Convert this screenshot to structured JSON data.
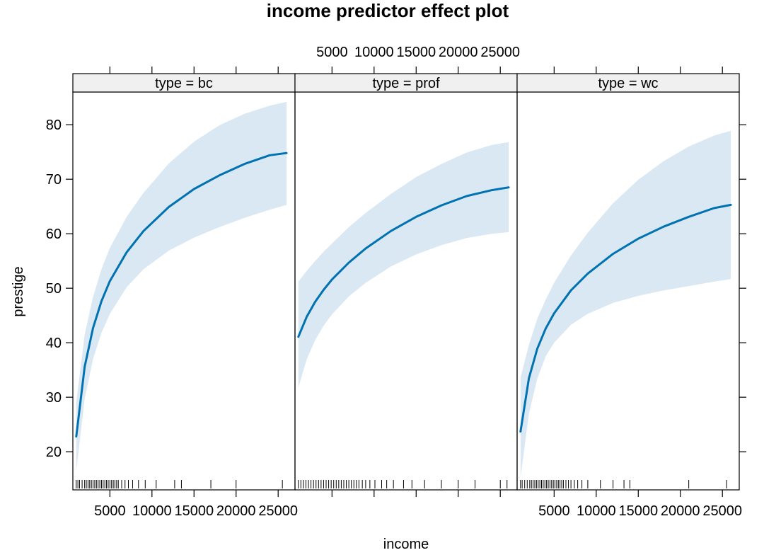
{
  "chart_data": {
    "type": "line",
    "title": "income predictor effect plot",
    "xlabel": "income",
    "ylabel": "prestige",
    "xlim": [
      600,
      27000
    ],
    "ylim": [
      13,
      86
    ],
    "x_ticks": [
      5000,
      10000,
      15000,
      20000,
      25000
    ],
    "x_tick_labels": [
      "5000",
      "10000",
      "15000",
      "20000",
      "25000"
    ],
    "y_ticks": [
      20,
      30,
      40,
      50,
      60,
      70,
      80
    ],
    "y_tick_labels": [
      "20",
      "30",
      "40",
      "50",
      "60",
      "70",
      "80"
    ],
    "line_color": "#0072B2",
    "band_color": "#D9E8F2",
    "strip_color": "#F0F0F0",
    "panels": [
      {
        "strip": "type = bc",
        "x": [
          1000,
          2000,
          3000,
          4000,
          5000,
          7000,
          9000,
          12000,
          15000,
          18000,
          21000,
          24000,
          26000
        ],
        "fit": [
          22.8,
          35.6,
          42.7,
          47.6,
          51.3,
          56.6,
          60.5,
          64.9,
          68.2,
          70.7,
          72.8,
          74.4,
          74.8
        ],
        "lower": [
          16.5,
          29.7,
          37.0,
          41.8,
          45.3,
          50.2,
          53.5,
          56.9,
          59.3,
          61.2,
          62.9,
          64.4,
          65.3
        ],
        "upper": [
          29.1,
          41.5,
          48.4,
          53.5,
          57.4,
          63.1,
          67.5,
          72.9,
          76.9,
          79.9,
          82.0,
          83.5,
          84.2
        ],
        "rug": [
          1000,
          1200,
          1400,
          1700,
          2000,
          2200,
          2400,
          2600,
          2800,
          3000,
          3200,
          3400,
          3600,
          3800,
          4000,
          4200,
          4400,
          4600,
          4800,
          5000,
          5200,
          5400,
          5600,
          5800,
          6000,
          6400,
          6800,
          7200,
          7700,
          8400,
          9200,
          10500,
          12700,
          13500,
          17000,
          20000,
          25500
        ]
      },
      {
        "strip": "type = prof",
        "x": [
          1000,
          2000,
          3000,
          4000,
          5000,
          7000,
          9000,
          12000,
          15000,
          18000,
          21000,
          24000,
          26000
        ],
        "fit": [
          41.1,
          44.8,
          47.5,
          49.7,
          51.6,
          54.7,
          57.3,
          60.5,
          63.1,
          65.2,
          66.9,
          68.0,
          68.5
        ],
        "lower": [
          31.8,
          37.0,
          40.5,
          43.1,
          45.2,
          48.5,
          51.0,
          54.0,
          56.2,
          57.9,
          59.2,
          60.0,
          60.3
        ],
        "upper": [
          51.2,
          53.2,
          55.0,
          56.7,
          58.2,
          61.2,
          63.8,
          67.3,
          70.4,
          72.8,
          74.9,
          76.3,
          76.8
        ],
        "rug": [
          1000,
          1300,
          1600,
          1900,
          2200,
          2500,
          2800,
          3100,
          3400,
          3700,
          4000,
          4300,
          4600,
          4900,
          5200,
          5500,
          5800,
          6100,
          6400,
          6700,
          7000,
          7300,
          7600,
          7900,
          8200,
          8600,
          9000,
          9500,
          10100,
          10900,
          11500,
          12300,
          13500,
          14500,
          16000,
          18000,
          20000,
          22000,
          25000,
          25800
        ]
      },
      {
        "strip": "type = wc",
        "x": [
          1000,
          2000,
          3000,
          4000,
          5000,
          7000,
          9000,
          12000,
          15000,
          18000,
          21000,
          24000,
          26000
        ],
        "fit": [
          23.7,
          33.5,
          38.9,
          42.6,
          45.4,
          49.6,
          52.7,
          56.3,
          59.1,
          61.3,
          63.1,
          64.7,
          65.3
        ],
        "lower": [
          15.2,
          27.0,
          33.4,
          37.5,
          40.0,
          43.3,
          45.3,
          47.3,
          48.6,
          49.6,
          50.4,
          51.2,
          51.7
        ],
        "upper": [
          33.6,
          39.6,
          44.4,
          47.9,
          51.0,
          56.0,
          60.2,
          65.6,
          69.9,
          73.3,
          76.0,
          78.0,
          78.9
        ],
        "rug": [
          1000,
          1200,
          1500,
          1800,
          2100,
          2300,
          2500,
          2700,
          2900,
          3100,
          3300,
          3500,
          3700,
          3900,
          4100,
          4300,
          4500,
          4700,
          4900,
          5100,
          5300,
          5500,
          5700,
          5900,
          6100,
          6400,
          6700,
          7000,
          7400,
          7800,
          8300,
          9000,
          10500,
          12000,
          13300,
          14000,
          21000,
          25500
        ]
      }
    ]
  }
}
